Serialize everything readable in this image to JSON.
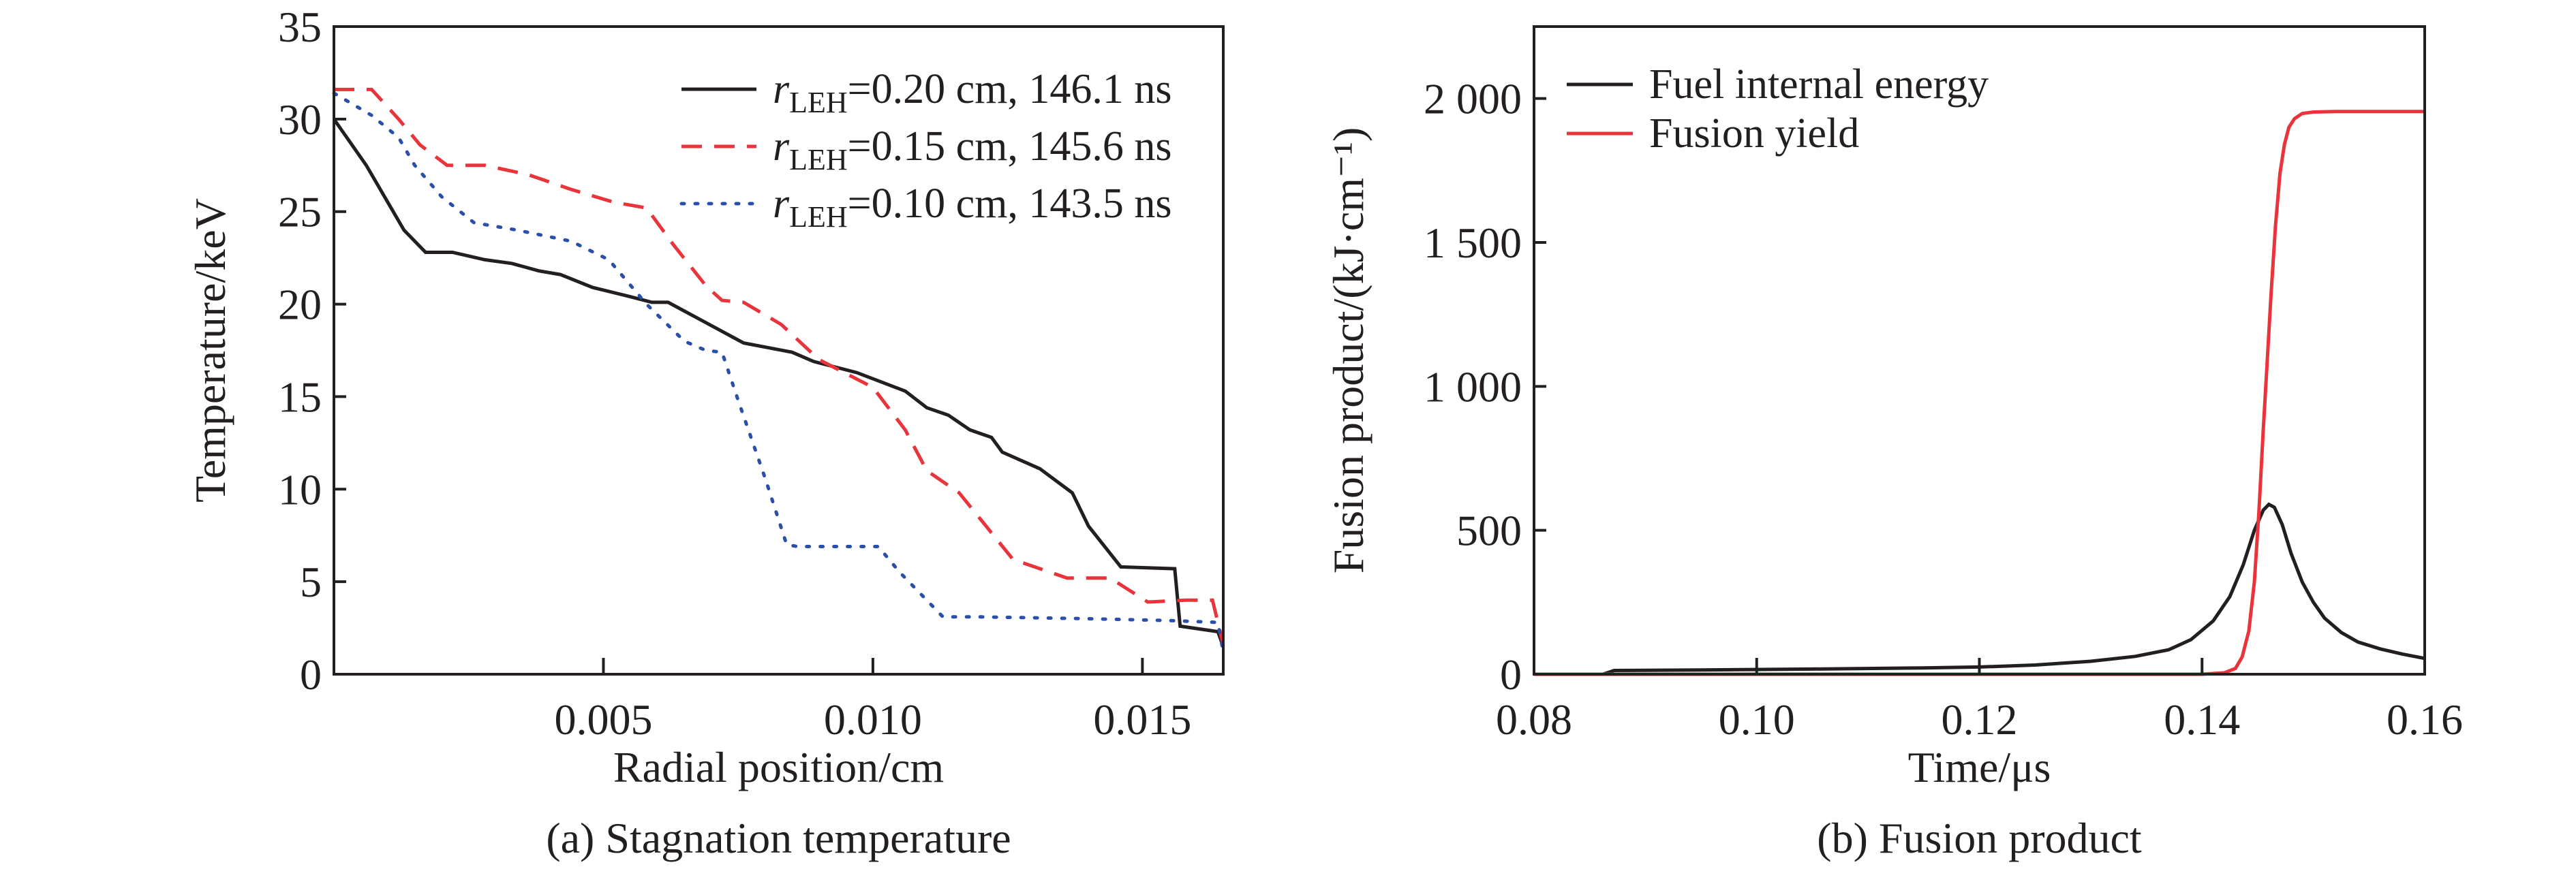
{
  "chart_data": [
    {
      "type": "line",
      "caption": "(a) Stagnation temperature",
      "xlabel": "Radial position/cm",
      "ylabel": "Temperature/keV",
      "xlim": [
        0,
        0.0165
      ],
      "ylim": [
        0,
        35
      ],
      "xticks": [
        0.005,
        0.01,
        0.015
      ],
      "xtick_labels": [
        "0.005",
        "0.010",
        "0.015"
      ],
      "yticks": [
        0,
        5,
        10,
        15,
        20,
        25,
        30,
        35
      ],
      "ytick_labels": [
        "0",
        "5",
        "10",
        "15",
        "20",
        "25",
        "30",
        "35"
      ],
      "grid": false,
      "legend_position": "top-right",
      "series": [
        {
          "name": "rLEH=0.20 cm, 146.1 ns",
          "name_parts": {
            "var": "r",
            "sub": "LEH",
            "rest": "=0.20 cm, 146.1 ns"
          },
          "color": "#231f20",
          "style": "solid",
          "x": [
            0,
            0.0006,
            0.0013,
            0.0017,
            0.0022,
            0.0028,
            0.0033,
            0.0038,
            0.0042,
            0.0048,
            0.0055,
            0.0059,
            0.0062,
            0.0069,
            0.0076,
            0.0085,
            0.0089,
            0.0097,
            0.0106,
            0.011,
            0.0114,
            0.0118,
            0.0122,
            0.0124,
            0.0131,
            0.0137,
            0.014,
            0.0146,
            0.0156,
            0.0157,
            0.0164,
            0.0165
          ],
          "y": [
            30,
            27.5,
            24,
            22.8,
            22.8,
            22.4,
            22.2,
            21.8,
            21.6,
            20.9,
            20.4,
            20.1,
            20.1,
            19,
            17.9,
            17.4,
            16.9,
            16.3,
            15.3,
            14.4,
            14,
            13.2,
            12.8,
            12,
            11.1,
            9.8,
            8,
            5.8,
            5.7,
            2.6,
            2.3,
            1.5
          ]
        },
        {
          "name": "rLEH=0.15 cm, 145.6 ns",
          "name_parts": {
            "var": "r",
            "sub": "LEH",
            "rest": "=0.15 cm, 145.6 ns"
          },
          "color": "#e8343a",
          "style": "dashed",
          "x": [
            0,
            0.0007,
            0.0012,
            0.0016,
            0.0021,
            0.0028,
            0.0036,
            0.0044,
            0.0052,
            0.0058,
            0.0063,
            0.0069,
            0.0072,
            0.0076,
            0.0083,
            0.009,
            0.01,
            0.0106,
            0.011,
            0.0116,
            0.0121,
            0.0126,
            0.0131,
            0.0136,
            0.0144,
            0.0151,
            0.0158,
            0.0163,
            0.0165
          ],
          "y": [
            31.6,
            31.6,
            30.0,
            28.6,
            27.5,
            27.5,
            27.0,
            26.2,
            25.5,
            25.2,
            23.2,
            21.0,
            20.2,
            20.1,
            18.9,
            17.0,
            15.5,
            13.2,
            11.0,
            9.8,
            8,
            6.2,
            5.7,
            5.2,
            5.2,
            3.9,
            4.0,
            4.0,
            1.6
          ]
        },
        {
          "name": "rLEH=0.10 cm, 143.5 ns",
          "name_parts": {
            "var": "r",
            "sub": "LEH",
            "rest": "=0.10 cm, 143.5 ns"
          },
          "color": "#2b4fa8",
          "style": "dotted",
          "x": [
            0,
            0.0007,
            0.0012,
            0.0015,
            0.002,
            0.0026,
            0.0034,
            0.0044,
            0.0051,
            0.0058,
            0.0065,
            0.0069,
            0.0072,
            0.0075,
            0.008,
            0.0084,
            0.0086,
            0.0101,
            0.0105,
            0.0113,
            0.012,
            0.014,
            0.0155,
            0.0164,
            0.0165
          ],
          "y": [
            31.4,
            30.2,
            29.0,
            27.5,
            25.8,
            24.4,
            24.0,
            23.4,
            22.4,
            20.0,
            18.0,
            17.5,
            17.4,
            14.8,
            10.6,
            7.0,
            6.9,
            6.9,
            5.5,
            3.1,
            3.1,
            3.0,
            2.9,
            2.8,
            1.2
          ]
        }
      ]
    },
    {
      "type": "line",
      "caption": "(b) Fusion product",
      "xlabel": "Time/μs",
      "ylabel": "Fusion product/(kJ·cm⁻¹)",
      "xlim": [
        0.08,
        0.16
      ],
      "ylim": [
        0,
        2250
      ],
      "xticks": [
        0.08,
        0.1,
        0.12,
        0.14,
        0.16
      ],
      "xtick_labels": [
        "0.08",
        "0.10",
        "0.12",
        "0.14",
        "0.16"
      ],
      "yticks": [
        0,
        500,
        1000,
        1500,
        2000
      ],
      "ytick_labels": [
        "0",
        "500",
        "1 000",
        "1 500",
        "2 000"
      ],
      "grid": false,
      "legend_position": "top-left",
      "series": [
        {
          "name": "Fuel internal energy",
          "color": "#231f20",
          "style": "solid",
          "x": [
            0.08,
            0.0862,
            0.0872,
            0.095,
            0.105,
            0.115,
            0.12,
            0.125,
            0.13,
            0.134,
            0.137,
            0.139,
            0.141,
            0.1425,
            0.1437,
            0.1447,
            0.1455,
            0.146,
            0.1465,
            0.1472,
            0.148,
            0.149,
            0.15,
            0.151,
            0.1525,
            0.154,
            0.156,
            0.158,
            0.16
          ],
          "y": [
            0,
            0,
            13,
            15,
            18,
            22,
            25,
            32,
            45,
            62,
            85,
            120,
            185,
            270,
            380,
            500,
            570,
            590,
            580,
            520,
            420,
            320,
            250,
            195,
            145,
            112,
            88,
            70,
            55
          ]
        },
        {
          "name": "Fusion yield",
          "color": "#e8343a",
          "style": "solid",
          "x": [
            0.08,
            0.14,
            0.142,
            0.143,
            0.1436,
            0.1442,
            0.1447,
            0.1451,
            0.1455,
            0.1458,
            0.1462,
            0.1466,
            0.147,
            0.1474,
            0.1478,
            0.1483,
            0.149,
            0.15,
            0.152,
            0.16
          ],
          "y": [
            0,
            0,
            5,
            20,
            60,
            150,
            320,
            560,
            850,
            1050,
            1320,
            1560,
            1740,
            1840,
            1900,
            1930,
            1948,
            1953,
            1955,
            1955
          ]
        }
      ]
    }
  ]
}
